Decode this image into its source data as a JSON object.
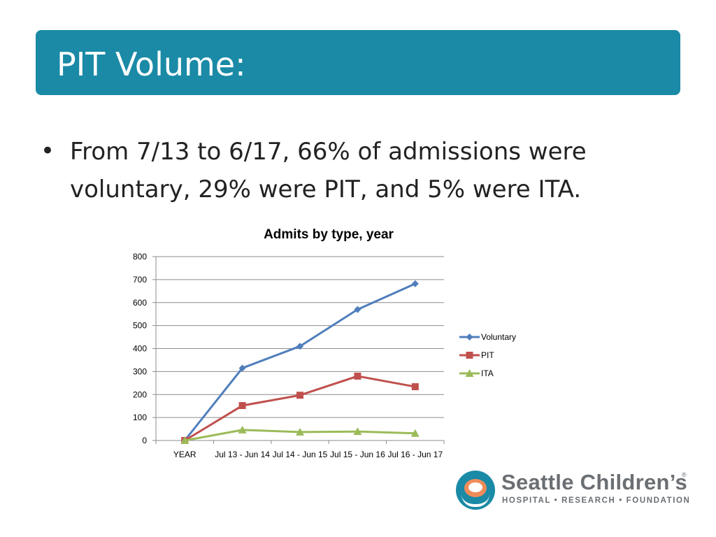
{
  "slide": {
    "title": "PIT Volume:",
    "bullet_symbol": "•",
    "bullet_text": "From 7/13 to 6/17, 66% of admissions were voluntary, 29% were PIT, and 5% were ITA."
  },
  "logo": {
    "name": "Seattle Children’s",
    "registered": "®",
    "tagline": "HOSPITAL • RESEARCH • FOUNDATION"
  },
  "chart_data": {
    "type": "line",
    "title": "Admits by type, year",
    "categories": [
      "YEAR",
      "Jul 13 - Jun 14",
      "Jul 14 - Jun 15",
      "Jul 15 - Jun 16",
      "Jul 16 - Jun 17"
    ],
    "ylim": [
      0,
      800
    ],
    "yticks": [
      0,
      100,
      200,
      300,
      400,
      500,
      600,
      700,
      800
    ],
    "grid": true,
    "legend_position": "right",
    "series": [
      {
        "name": "Voluntary",
        "values": [
          0,
          315,
          410,
          570,
          682
        ],
        "color": "#4f7ebc",
        "marker": "diamond"
      },
      {
        "name": "PIT",
        "values": [
          0,
          152,
          197,
          280,
          234
        ],
        "color": "#c0504d",
        "marker": "square"
      },
      {
        "name": "ITA",
        "values": [
          0,
          46,
          37,
          39,
          31
        ],
        "color": "#9bbb59",
        "marker": "triangle"
      }
    ]
  }
}
